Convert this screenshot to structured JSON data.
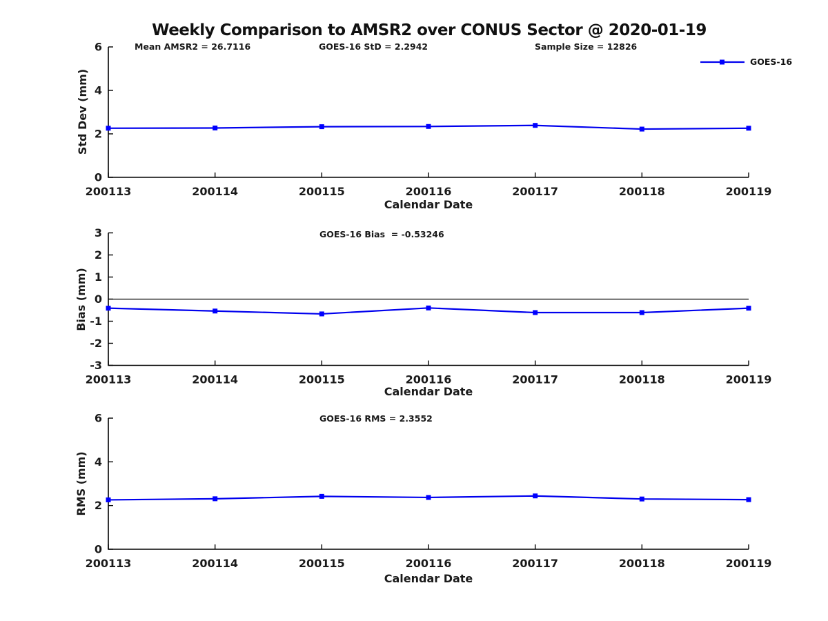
{
  "title": "Weekly Comparison to AMSR2 over CONUS Sector @ 2020-01-19",
  "colors": {
    "line": "#0000EE",
    "marker": "#0000FF",
    "axis": "#000000",
    "text": "#1a1a1a"
  },
  "legend": {
    "label": "GOES-16"
  },
  "chart_data": [
    {
      "id": "std-dev",
      "type": "line",
      "annotations": {
        "left": "Mean AMSR2 = 26.7116",
        "center": "GOES-16 StD = 2.2942",
        "right": "Sample Size = 12826"
      },
      "categories": [
        "200113",
        "200114",
        "200115",
        "200116",
        "200117",
        "200118",
        "200119"
      ],
      "series": [
        {
          "name": "GOES-16",
          "values": [
            2.26,
            2.27,
            2.33,
            2.34,
            2.39,
            2.22,
            2.26
          ]
        }
      ],
      "xlabel": "Calendar Date",
      "ylabel": "Std Dev (mm)",
      "ylim": [
        0,
        6
      ],
      "yticks": [
        0,
        2,
        4,
        6
      ],
      "zero_line": false,
      "grid": false,
      "legend_position": "top-right"
    },
    {
      "id": "bias",
      "type": "line",
      "annotations": {
        "center": "GOES-16 Bias  = -0.53246"
      },
      "categories": [
        "200113",
        "200114",
        "200115",
        "200116",
        "200117",
        "200118",
        "200119"
      ],
      "series": [
        {
          "name": "GOES-16",
          "values": [
            -0.41,
            -0.54,
            -0.67,
            -0.4,
            -0.61,
            -0.61,
            -0.41
          ]
        }
      ],
      "xlabel": "Calendar Date",
      "ylabel": "Bias (mm)",
      "ylim": [
        -3,
        3
      ],
      "yticks": [
        -3,
        -2,
        -1,
        0,
        1,
        2,
        3
      ],
      "zero_line": true,
      "grid": false
    },
    {
      "id": "rms",
      "type": "line",
      "annotations": {
        "center": "GOES-16 RMS = 2.3552"
      },
      "categories": [
        "200113",
        "200114",
        "200115",
        "200116",
        "200117",
        "200118",
        "200119"
      ],
      "series": [
        {
          "name": "GOES-16",
          "values": [
            2.26,
            2.31,
            2.42,
            2.37,
            2.44,
            2.3,
            2.27
          ]
        }
      ],
      "xlabel": "Calendar Date",
      "ylabel": "RMS (mm)",
      "ylim": [
        0,
        6
      ],
      "yticks": [
        0,
        2,
        4,
        6
      ],
      "zero_line": false,
      "grid": false
    }
  ]
}
